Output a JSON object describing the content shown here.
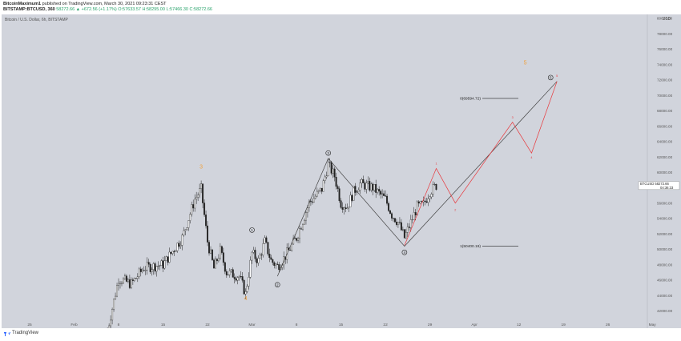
{
  "header": {
    "author": "BitcoinMaximum1",
    "published_text": " published on TradingView.com, March 30, 2021 09:23:31 CEST",
    "symbol": "BITSTAMP:BTCUSD, 360",
    "ohlc": " 58272.66 ▲ +672.56 (+1.17%) O:57633.57 H:58295.00 L:57466.30 C:58272.66",
    "legend": "Bitcoin / U.S. Dollar, 6h, BITSTAMP"
  },
  "footer": {
    "brand": "TradingView"
  },
  "colors": {
    "background": "#d1d4dc",
    "candle": "#222222",
    "projection": "#e8383c",
    "wave_line": "#444444",
    "degree_label": "#f2a13b",
    "price_badge": "#ffffff"
  },
  "chart_data": {
    "type": "candlestick",
    "title": "Bitcoin / U.S. Dollar, 6h, BITSTAMP",
    "currency": "USD",
    "ylim": [
      41000,
      80500
    ],
    "y_ticks": [
      42000,
      44000,
      46000,
      48000,
      50000,
      52000,
      54000,
      56000,
      58000,
      60000,
      62000,
      64000,
      66000,
      68000,
      70000,
      72000,
      74000,
      76000,
      78000,
      80000
    ],
    "x_ticks": [
      "25",
      "Feb",
      "8",
      "15",
      "22",
      "Mar",
      "8",
      "15",
      "22",
      "29",
      "Apr",
      "12",
      "19",
      "26",
      "May"
    ],
    "last_price": {
      "label": "BTCUSD",
      "value": "58272.66",
      "countdown": "04:36:33"
    },
    "fib_levels": [
      {
        "label": "0(69594.72)",
        "price": 69594.72
      },
      {
        "label": "1(50400.19)",
        "price": 50400.19
      }
    ],
    "higher_degree_labels": [
      {
        "label": "3",
        "date": "Feb 21",
        "price": 60500
      },
      {
        "label": "4",
        "date": "Feb 28",
        "price": 43400
      },
      {
        "label": "5",
        "date": "Apr 13",
        "price": 74000
      }
    ],
    "wave_labels": [
      {
        "label": "1",
        "date": "Mar 1",
        "price": 52500
      },
      {
        "label": "2",
        "date": "Mar 5",
        "price": 45400
      },
      {
        "label": "3",
        "date": "Mar 13",
        "price": 62500
      },
      {
        "label": "4",
        "date": "Mar 25",
        "price": 49600
      },
      {
        "label": "5",
        "date": "Apr 17",
        "price": 72300
      }
    ],
    "wave_path": [
      {
        "date": "Mar 5",
        "price": 46500
      },
      {
        "date": "Mar 13",
        "price": 61800
      },
      {
        "date": "Mar 25",
        "price": 50400
      },
      {
        "date": "Apr 18",
        "price": 71800
      }
    ],
    "projection_labels": [
      {
        "label": "1",
        "date": "Mar 30",
        "price": 61000
      },
      {
        "label": "2",
        "date": "Apr 2",
        "price": 55000
      },
      {
        "label": "3",
        "date": "Apr 11",
        "price": 67000
      },
      {
        "label": "4",
        "date": "Apr 14",
        "price": 61800
      },
      {
        "label": "5",
        "date": "Apr 18",
        "price": 72400
      }
    ],
    "projection_path": [
      {
        "date": "Mar 25",
        "price": 50500
      },
      {
        "date": "Mar 30",
        "price": 60500
      },
      {
        "date": "Apr 2",
        "price": 56000
      },
      {
        "date": "Apr 11",
        "price": 66500
      },
      {
        "date": "Apr 14",
        "price": 62500
      },
      {
        "date": "Apr 18",
        "price": 71800
      }
    ],
    "price_path": [
      {
        "date": "Feb 6",
        "price": 38500
      },
      {
        "date": "Feb 8",
        "price": 46200
      },
      {
        "date": "Feb 10",
        "price": 45500
      },
      {
        "date": "Feb 12",
        "price": 47600
      },
      {
        "date": "Feb 15",
        "price": 48000
      },
      {
        "date": "Feb 18",
        "price": 51500
      },
      {
        "date": "Feb 20",
        "price": 56500
      },
      {
        "date": "Feb 21",
        "price": 57800
      },
      {
        "date": "Feb 22",
        "price": 51000
      },
      {
        "date": "Feb 23",
        "price": 47500
      },
      {
        "date": "Feb 24",
        "price": 49800
      },
      {
        "date": "Feb 25",
        "price": 47000
      },
      {
        "date": "Feb 27",
        "price": 46500
      },
      {
        "date": "Feb 28",
        "price": 44200
      },
      {
        "date": "Mar 1",
        "price": 49500
      },
      {
        "date": "Mar 2",
        "price": 48500
      },
      {
        "date": "Mar 3",
        "price": 51000
      },
      {
        "date": "Mar 4",
        "price": 48500
      },
      {
        "date": "Mar 5",
        "price": 47800
      },
      {
        "date": "Mar 6",
        "price": 48800
      },
      {
        "date": "Mar 8",
        "price": 51500
      },
      {
        "date": "Mar 10",
        "price": 56000
      },
      {
        "date": "Mar 12",
        "price": 57800
      },
      {
        "date": "Mar 13",
        "price": 61000
      },
      {
        "date": "Mar 14",
        "price": 59500
      },
      {
        "date": "Mar 15",
        "price": 56000
      },
      {
        "date": "Mar 16",
        "price": 55500
      },
      {
        "date": "Mar 17",
        "price": 57500
      },
      {
        "date": "Mar 18",
        "price": 58500
      },
      {
        "date": "Mar 20",
        "price": 58000
      },
      {
        "date": "Mar 22",
        "price": 56500
      },
      {
        "date": "Mar 23",
        "price": 54500
      },
      {
        "date": "Mar 24",
        "price": 53500
      },
      {
        "date": "Mar 25",
        "price": 51500
      },
      {
        "date": "Mar 26",
        "price": 53500
      },
      {
        "date": "Mar 27",
        "price": 55500
      },
      {
        "date": "Mar 28",
        "price": 55800
      },
      {
        "date": "Mar 29",
        "price": 57500
      },
      {
        "date": "Mar 30",
        "price": 58272
      }
    ]
  }
}
